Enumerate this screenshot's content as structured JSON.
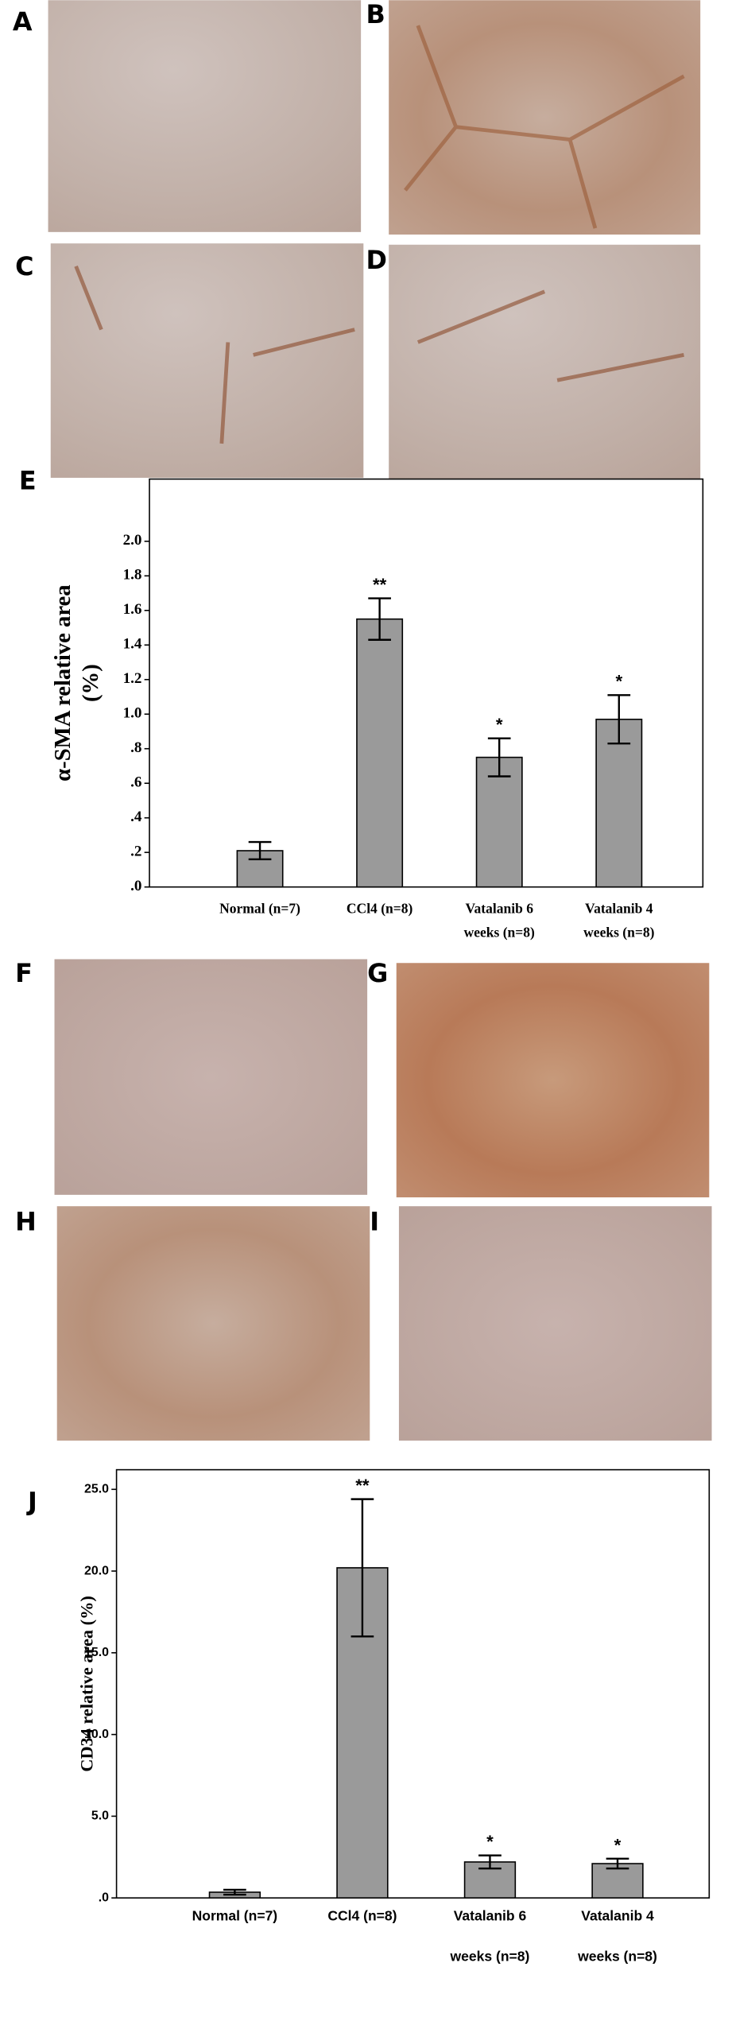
{
  "panel_labels": [
    "A",
    "B",
    "C",
    "D",
    "F",
    "G",
    "H",
    "I"
  ],
  "chart_data": [
    {
      "type": "bar",
      "panel_label": "E",
      "ylabel": [
        "α-SMA relative area",
        "(%)"
      ],
      "categories": [
        [
          "Normal (n=7)"
        ],
        [
          "CCl4 (n=8)"
        ],
        [
          "Vatalanib 6",
          "weeks (n=8)"
        ],
        [
          "Vatalanib 4",
          "weeks (n=8)"
        ]
      ],
      "series": [
        {
          "color": "#9a9a9a",
          "values": [
            0.21,
            1.55,
            0.75,
            0.97
          ],
          "errors": [
            0.05,
            0.12,
            0.11,
            0.14
          ]
        }
      ],
      "significance": [
        null,
        "**",
        "*",
        "*"
      ],
      "ylim": [
        0,
        2.36
      ],
      "yticks": [
        {
          "value": 0,
          "label": ".0"
        },
        {
          "value": 0.2,
          "label": ".2"
        },
        {
          "value": 0.4,
          "label": ".4"
        },
        {
          "value": 0.6,
          "label": ".6"
        },
        {
          "value": 0.8,
          "label": ".8"
        },
        {
          "value": 1,
          "label": "1.0"
        },
        1.2,
        1.4,
        1.6,
        1.8,
        {
          "value": 2,
          "label": "2.0"
        }
      ]
    },
    {
      "type": "bar",
      "panel_label": "J",
      "ylabel": [
        "CD34 relative area (%)"
      ],
      "categories": [
        [
          "Normal (n=7)"
        ],
        [
          "CCl4 (n=8)"
        ],
        [
          "Vatalanib 6",
          "weeks  (n=8)"
        ],
        [
          "Vatalanib 4",
          "weeks (n=8)"
        ]
      ],
      "series": [
        {
          "color": "#9a9a9a",
          "values": [
            0.35,
            20.2,
            2.2,
            2.1
          ],
          "errors": [
            0.15,
            4.2,
            0.4,
            0.3
          ]
        }
      ],
      "significance": [
        null,
        "**",
        "*",
        "*"
      ],
      "ylim": [
        0,
        26.2
      ],
      "yticks": [
        {
          "value": 0,
          "label": ".0"
        },
        {
          "value": 5,
          "label": "5.0"
        },
        {
          "value": 10,
          "label": "10.0"
        },
        {
          "value": 15,
          "label": "15.0"
        },
        {
          "value": 20,
          "label": "20.0"
        },
        {
          "value": 25,
          "label": "25.0"
        }
      ]
    }
  ]
}
